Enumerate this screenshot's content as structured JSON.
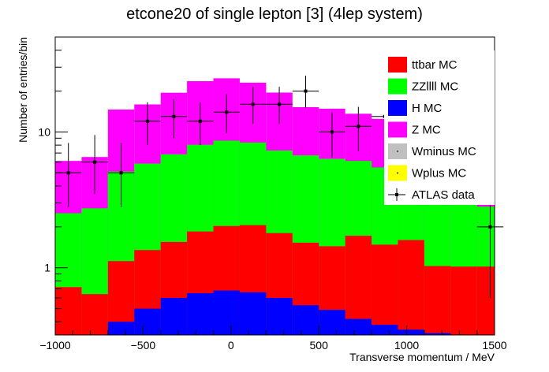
{
  "chart_data": {
    "type": "bar",
    "stacked": true,
    "title": "etcone20 of single lepton [3] (4lep system)",
    "xlabel": "Transverse momentum / MeV",
    "ylabel": "Number of entries/bin",
    "xlim": [
      -1000,
      1500
    ],
    "ylim": [
      0.32,
      50
    ],
    "yscale": "log",
    "x_ticks": [
      -1000,
      -500,
      0,
      500,
      1000,
      1500
    ],
    "x_tick_labels": [
      "−1000",
      "−500",
      "0",
      "500",
      "1000",
      "1500"
    ],
    "y_ticks": [
      1,
      10
    ],
    "y_tick_labels": [
      "1",
      "10"
    ],
    "bin_edges": [
      -1000,
      -850,
      -700,
      -550,
      -400,
      -250,
      -100,
      50,
      200,
      350,
      500,
      650,
      800,
      950,
      1100,
      1250,
      1400,
      1500
    ],
    "legend_position": "top-right",
    "series": [
      {
        "name": "ttbar MC",
        "color": "#ff0000",
        "values": [
          0.4,
          0.32,
          0.72,
          0.85,
          0.95,
          1.2,
          1.35,
          1.4,
          1.2,
          1.0,
          0.95,
          1.3,
          1.1,
          1.25,
          0.7,
          0.7,
          0.7
        ]
      },
      {
        "name": "ZZllll MC",
        "color": "#00ff00",
        "values": [
          1.8,
          2.1,
          4.0,
          4.5,
          5.3,
          6.2,
          6.6,
          6.3,
          5.5,
          5.2,
          4.9,
          4.4,
          4.0,
          3.2,
          2.5,
          2.2,
          1.8
        ]
      },
      {
        "name": "H MC",
        "color": "#0000ff",
        "values": [
          0.32,
          0.32,
          0.4,
          0.5,
          0.6,
          0.65,
          0.68,
          0.66,
          0.6,
          0.53,
          0.49,
          0.42,
          0.38,
          0.35,
          0.33,
          0.32,
          0.32
        ]
      },
      {
        "name": "Z MC",
        "color": "#ff00ff",
        "values": [
          3.6,
          3.8,
          9.5,
          10.1,
          12.6,
          15.6,
          16.2,
          14.7,
          12.2,
          8.5,
          8.5,
          7.5,
          7.0,
          6.4,
          5.4,
          3.4,
          3.9
        ]
      },
      {
        "name": "Wminus MC",
        "color": "#c0c0c0",
        "values": []
      },
      {
        "name": "Wplus MC",
        "color": "#ffff00",
        "values": []
      }
    ],
    "data_series": {
      "name": "ATLAS data",
      "color": "#000000",
      "points": [
        {
          "x": -925,
          "y": 5.0,
          "ylo": 2.8,
          "yhi": 8.3
        },
        {
          "x": -775,
          "y": 6.0,
          "ylo": 3.5,
          "yhi": 9.5
        },
        {
          "x": -625,
          "y": 5.0,
          "ylo": 2.8,
          "yhi": 8.3
        },
        {
          "x": -475,
          "y": 12.0,
          "ylo": 8.0,
          "yhi": 16.5
        },
        {
          "x": -325,
          "y": 13.0,
          "ylo": 9.0,
          "yhi": 17.5
        },
        {
          "x": -175,
          "y": 12.0,
          "ylo": 8.0,
          "yhi": 16.5
        },
        {
          "x": -25,
          "y": 14.0,
          "ylo": 9.8,
          "yhi": 19.0
        },
        {
          "x": 125,
          "y": 16.0,
          "ylo": 11.5,
          "yhi": 21.5
        },
        {
          "x": 275,
          "y": 16.0,
          "ylo": 11.5,
          "yhi": 21.5
        },
        {
          "x": 425,
          "y": 20.0,
          "ylo": 15.0,
          "yhi": 26.0
        },
        {
          "x": 575,
          "y": 10.0,
          "ylo": 6.5,
          "yhi": 14.0
        },
        {
          "x": 725,
          "y": 11.0,
          "ylo": 7.2,
          "yhi": 15.3
        },
        {
          "x": 875,
          "y": 13.0,
          "ylo": 9.0,
          "yhi": 17.5
        },
        {
          "x": 1475,
          "y": 2.0,
          "ylo": 0.6,
          "yhi": 4.6
        }
      ]
    }
  }
}
